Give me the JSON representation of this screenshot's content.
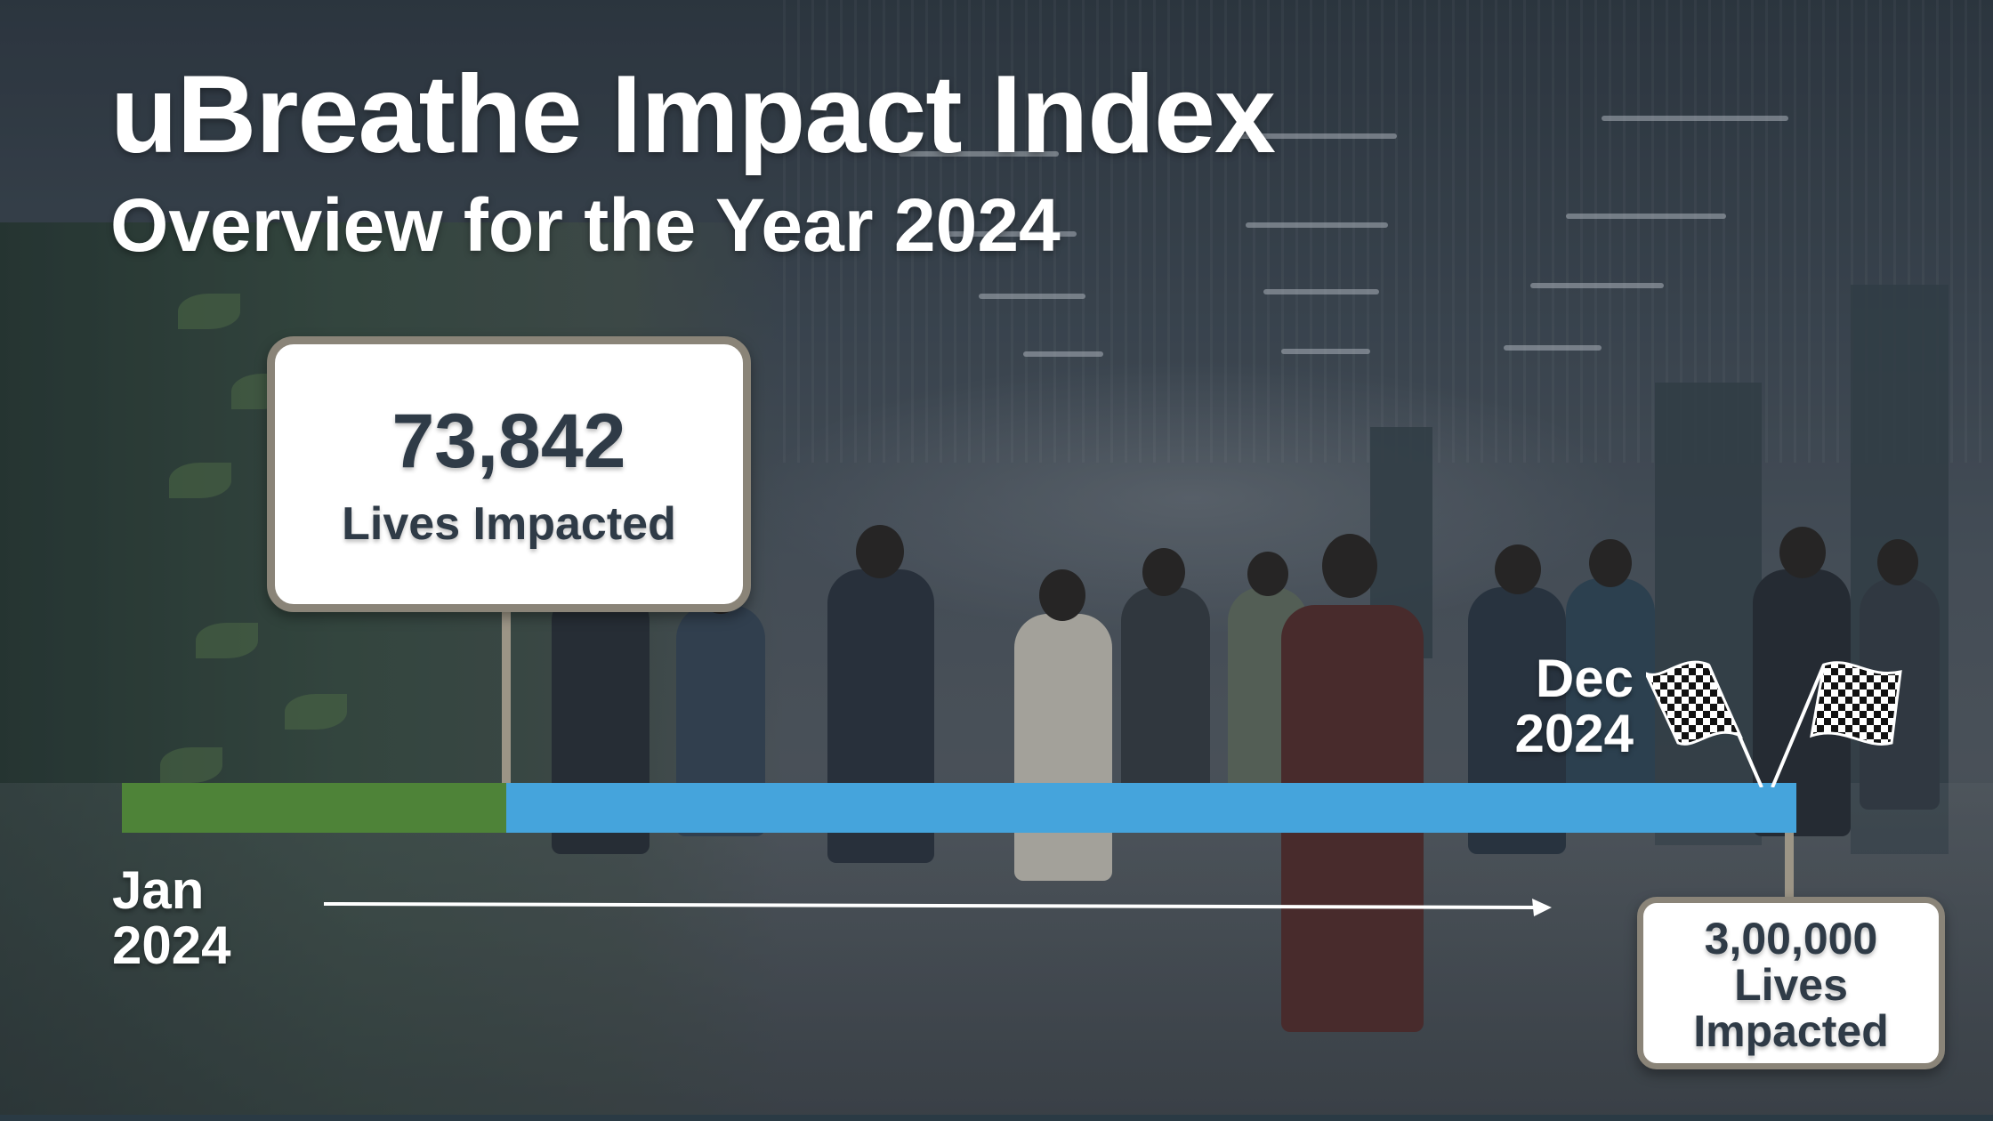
{
  "header": {
    "title": "uBreathe Impact Index",
    "subtitle": "Overview for the Year 2024"
  },
  "current": {
    "value": "73,842",
    "label": "Lives Impacted"
  },
  "goal": {
    "lines": [
      "3,00,000",
      "Lives",
      "Impacted"
    ]
  },
  "timeline": {
    "start_month": "Jan",
    "start_year": "2024",
    "end_month": "Dec",
    "end_year": "2024",
    "progress_fraction": 0.2297
  },
  "colors": {
    "progress": "#4e8338",
    "track": "#45a4dc",
    "callout_border": "#8a8478",
    "callout_text": "#2f3b47"
  },
  "icons": {
    "finish": "checkered-flags-icon",
    "arrow": "arrow-right-icon"
  }
}
